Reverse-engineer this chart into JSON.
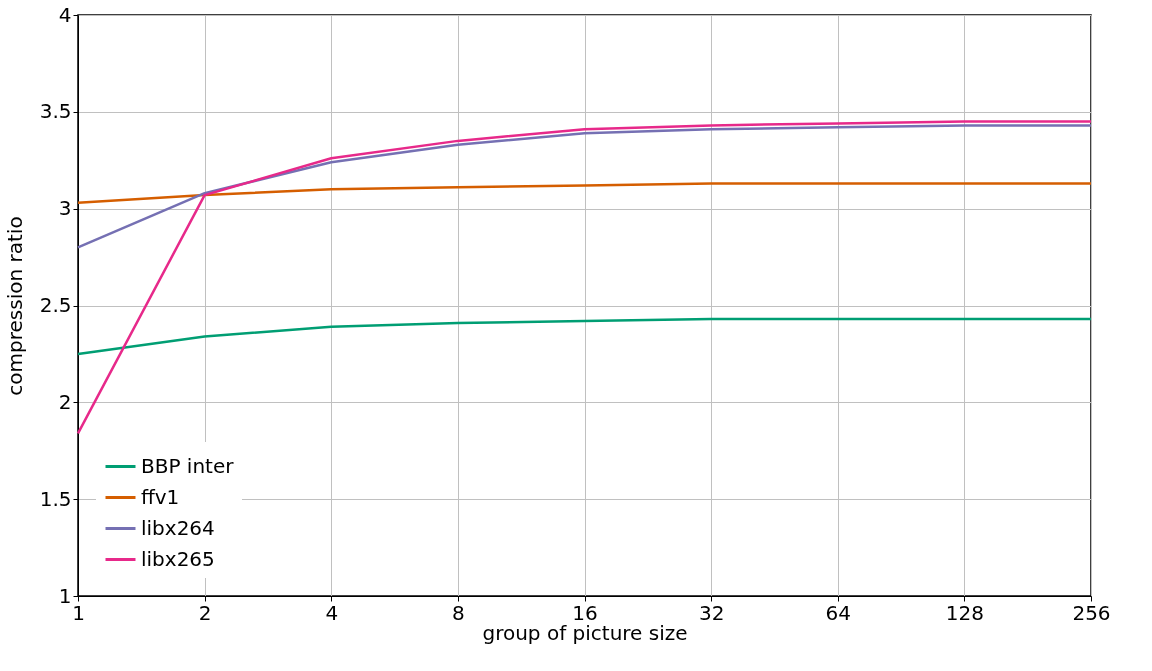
{
  "chart_data": {
    "type": "line",
    "xlabel": "group of picture size",
    "ylabel": "compression ratio",
    "x": [
      1,
      2,
      4,
      8,
      16,
      32,
      64,
      128,
      256
    ],
    "log": "x",
    "xlim": [
      1,
      256
    ],
    "xticks": [
      1,
      2,
      4,
      8,
      16,
      32,
      64,
      128,
      256
    ],
    "ylim": [
      1,
      4
    ],
    "yticks": [
      1,
      1.5,
      2,
      2.5,
      3,
      3.5,
      4
    ],
    "grid": true,
    "legend": "bottom left",
    "marker": "none",
    "line_style": "solid",
    "series": [
      {
        "name": "BBP inter",
        "color": "#009e73",
        "values": [
          2.25,
          2.34,
          2.39,
          2.41,
          2.42,
          2.43,
          2.43,
          2.43,
          2.43
        ]
      },
      {
        "name": "ffv1",
        "color": "#d55e00",
        "values": [
          3.03,
          3.07,
          3.1,
          3.11,
          3.12,
          3.13,
          3.13,
          3.13,
          3.13
        ]
      },
      {
        "name": "libx264",
        "color": "#7570b3",
        "values": [
          2.8,
          3.08,
          3.24,
          3.33,
          3.39,
          3.41,
          3.42,
          3.43,
          3.43
        ]
      },
      {
        "name": "libx265",
        "color": "#e7298a",
        "values": [
          1.84,
          3.07,
          3.26,
          3.35,
          3.41,
          3.43,
          3.44,
          3.45,
          3.45
        ]
      }
    ]
  }
}
